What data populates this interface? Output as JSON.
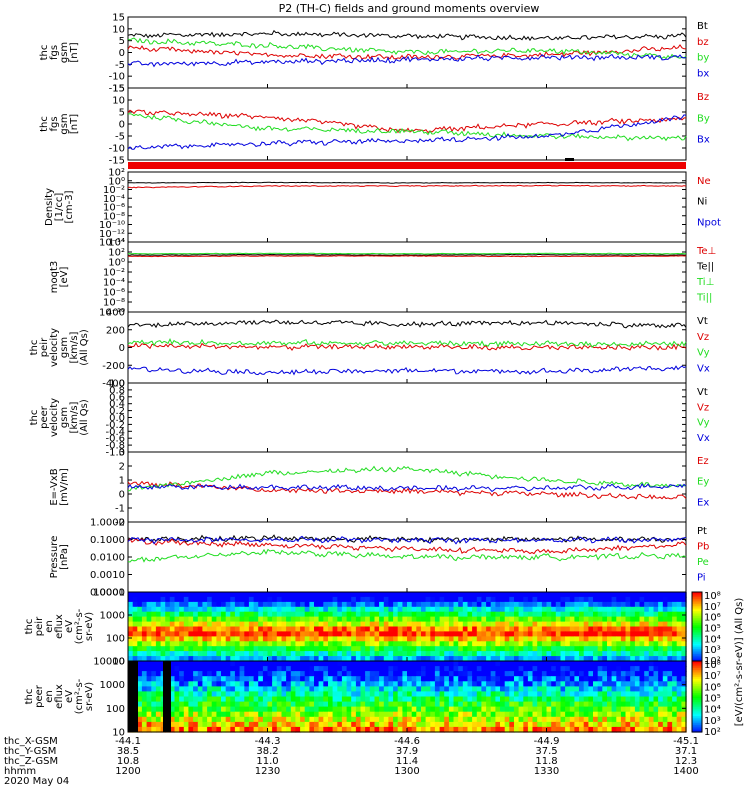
{
  "title": "P2 (TH-C) fields and ground moments overview",
  "colors": {
    "black": "#000000",
    "red": "#dd0000",
    "green": "#22dd22",
    "blue": "#0000dd"
  },
  "panels": [
    {
      "id": "fgs-gsm",
      "ylabel": [
        "thc",
        "fgs",
        "gsm",
        "[nT]"
      ],
      "ylim": [
        -15,
        15
      ],
      "yticks": [
        "15",
        "10",
        "5",
        "0",
        "-5",
        "-10",
        "-15"
      ],
      "legend": [
        {
          "text": "Bt",
          "color": "black"
        },
        {
          "text": "bz",
          "color": "red"
        },
        {
          "text": "by",
          "color": "green"
        },
        {
          "text": "bx",
          "color": "blue"
        }
      ]
    },
    {
      "id": "fgs-gsm-2",
      "ylabel": [
        "thc",
        "fgs",
        "gsm",
        "[nT]"
      ],
      "ylim": [
        -15,
        15
      ],
      "yticks": [
        "15",
        "10",
        "5",
        "0",
        "-5",
        "-10",
        "-15"
      ],
      "legend": [
        {
          "text": "Bz",
          "color": "red"
        },
        {
          "text": "By",
          "color": "green"
        },
        {
          "text": "Bx",
          "color": "blue"
        }
      ]
    },
    {
      "id": "density",
      "ylabel": [
        "Density",
        "[1/cc]",
        "[cm-3]"
      ],
      "yticks": [
        "10²",
        "10⁰",
        "10⁻²",
        "10⁻⁴",
        "10⁻⁶",
        "10⁻⁸",
        "10⁻¹⁰",
        "10⁻¹²",
        "10⁻¹⁴"
      ],
      "legend": [
        {
          "text": "Ne",
          "color": "red"
        },
        {
          "text": "Ni",
          "color": "black"
        },
        {
          "text": "Npot",
          "color": "blue"
        }
      ]
    },
    {
      "id": "temperature",
      "ylabel": [
        "moqt3",
        "[eV]"
      ],
      "yticks": [
        "10⁴",
        "10²",
        "10⁰",
        "10⁻²",
        "10⁻⁴",
        "10⁻⁶",
        "10⁻⁸",
        "10⁻¹⁰"
      ],
      "legend": [
        {
          "text": "Te⊥",
          "color": "red"
        },
        {
          "text": "Te||",
          "color": "black"
        },
        {
          "text": "Ti⊥",
          "color": "green"
        },
        {
          "text": "Ti||",
          "color": "green"
        }
      ]
    },
    {
      "id": "peir-velocity",
      "ylabel": [
        "thc",
        "peir",
        "velocity",
        "gsm",
        "[km/s]",
        "(All Qs)"
      ],
      "ylim": [
        -400,
        400
      ],
      "yticks": [
        "400",
        "200",
        "0",
        "-200",
        "-400"
      ],
      "legend": [
        {
          "text": "Vt",
          "color": "black"
        },
        {
          "text": "Vz",
          "color": "red"
        },
        {
          "text": "Vy",
          "color": "green"
        },
        {
          "text": "Vx",
          "color": "blue"
        }
      ]
    },
    {
      "id": "peer-velocity",
      "ylabel": [
        "thc",
        "peer",
        "velocity",
        "gsm",
        "[km/s]",
        "(All Qs)"
      ],
      "ylim": [
        -1.0,
        1.0
      ],
      "yticks": [
        "1.0",
        "0.8",
        "0.6",
        "0.4",
        "0.2",
        "0.0",
        "-0.2",
        "-0.4",
        "-0.6",
        "-0.8",
        "-1.0"
      ],
      "legend": [
        {
          "text": "Vt",
          "color": "black"
        },
        {
          "text": "Vz",
          "color": "red"
        },
        {
          "text": "Vy",
          "color": "green"
        },
        {
          "text": "Vx",
          "color": "blue"
        }
      ]
    },
    {
      "id": "efield",
      "ylabel": [
        "E=-VxB",
        "[mV/m]"
      ],
      "ylim": [
        -2,
        3
      ],
      "yticks": [
        "3",
        "2",
        "1",
        "0",
        "-1",
        "-2"
      ],
      "legend": [
        {
          "text": "Ez",
          "color": "red"
        },
        {
          "text": "Ey",
          "color": "green"
        },
        {
          "text": "Ex",
          "color": "blue"
        }
      ]
    },
    {
      "id": "pressure",
      "ylabel": [
        "Pressure",
        "[nPa]"
      ],
      "yticks": [
        "1.0000",
        "0.1000",
        "0.0100",
        "0.0010",
        "0.0001"
      ],
      "legend": [
        {
          "text": "Pt",
          "color": "black"
        },
        {
          "text": "Pb",
          "color": "red"
        },
        {
          "text": "Pe",
          "color": "green"
        },
        {
          "text": "Pi",
          "color": "blue"
        }
      ]
    },
    {
      "id": "peir-spectrogram",
      "ylabel": [
        "thc",
        "peir",
        "en",
        "eflux",
        "eV",
        "(cm²-s-",
        "sr-eV)"
      ],
      "yticks": [
        "10000",
        "1000",
        "100",
        "10"
      ]
    },
    {
      "id": "peer-spectrogram",
      "ylabel": [
        "thc",
        "peer",
        "en",
        "eflux",
        "eV",
        "(cm²-s-",
        "sr-eV)"
      ],
      "yticks": [
        "10000",
        "1000",
        "100",
        "10"
      ]
    }
  ],
  "colorbar": {
    "label": "[eV/(cm²-s-sr-eV)] (All Qs)",
    "top_ticks": [
      "10⁸",
      "10⁷",
      "10⁶",
      "10⁵",
      "10⁴",
      "10³",
      "10²"
    ],
    "bottom_ticks": [
      "10⁸",
      "10⁷",
      "10⁶",
      "10⁵",
      "10⁴",
      "10³",
      "10²"
    ]
  },
  "xaxis": {
    "rows": [
      {
        "label": "thc_X-GSM",
        "values": [
          "-44.1",
          "-44.3",
          "-44.6",
          "-44.9",
          "-45.1"
        ]
      },
      {
        "label": "thc_Y-GSM",
        "values": [
          "38.5",
          "38.2",
          "37.9",
          "37.5",
          "37.1"
        ]
      },
      {
        "label": "thc_Z-GSM",
        "values": [
          "10.8",
          "11.0",
          "11.4",
          "11.8",
          "12.3"
        ]
      },
      {
        "label": "hhmm",
        "values": [
          "1200",
          "1230",
          "1300",
          "1330",
          "1400"
        ]
      }
    ],
    "date": "2020 May 04"
  },
  "chart_data": {
    "type": "line",
    "title": "P2 (TH-C) fields and ground moments overview",
    "x": [
      "1200",
      "1230",
      "1300",
      "1330",
      "1400"
    ],
    "panels": [
      {
        "id": "fgs-gsm",
        "ylim": [
          -15,
          15
        ],
        "series": [
          {
            "name": "Bt",
            "values": [
              7,
              8,
              7,
              6,
              7
            ]
          },
          {
            "name": "bz",
            "values": [
              2,
              -1,
              -2,
              -1,
              2
            ]
          },
          {
            "name": "by",
            "values": [
              5,
              3,
              0,
              1,
              -2
            ]
          },
          {
            "name": "bx",
            "values": [
              -5,
              -4,
              -3,
              -2,
              -2
            ]
          }
        ]
      },
      {
        "id": "fgs-gsm-2",
        "ylim": [
          -15,
          15
        ],
        "series": [
          {
            "name": "Bz",
            "values": [
              5,
              3,
              -3,
              0,
              2
            ]
          },
          {
            "name": "By",
            "values": [
              4,
              -2,
              -3,
              -5,
              -6
            ]
          },
          {
            "name": "Bx",
            "values": [
              -10,
              -8,
              -7,
              -5,
              3
            ]
          }
        ]
      },
      {
        "id": "peir-velocity",
        "ylim": [
          -400,
          400
        ],
        "series": [
          {
            "name": "Vt",
            "values": [
              250,
              290,
              260,
              280,
              240
            ]
          },
          {
            "name": "Vz",
            "values": [
              20,
              5,
              10,
              -5,
              5
            ]
          },
          {
            "name": "Vy",
            "values": [
              60,
              50,
              50,
              40,
              40
            ]
          },
          {
            "name": "Vx",
            "values": [
              -240,
              -280,
              -260,
              -270,
              -230
            ]
          }
        ]
      },
      {
        "id": "efield",
        "ylim": [
          -2,
          3
        ],
        "series": [
          {
            "name": "Ez",
            "values": [
              0.8,
              0.3,
              0.2,
              0.0,
              -0.3
            ]
          },
          {
            "name": "Ey",
            "values": [
              0.3,
              1.5,
              1.8,
              1.0,
              0.5
            ]
          },
          {
            "name": "Ex",
            "values": [
              0.5,
              0.5,
              0.4,
              0.4,
              0.6
            ]
          }
        ]
      },
      {
        "id": "pressure",
        "ylim": [
          0.0001,
          1.0
        ],
        "scale": "log",
        "series": [
          {
            "name": "Pt",
            "values": [
              0.1,
              0.12,
              0.1,
              0.1,
              0.11
            ]
          },
          {
            "name": "Pb",
            "values": [
              0.08,
              0.05,
              0.03,
              0.02,
              0.05
            ]
          },
          {
            "name": "Pe",
            "values": [
              0.006,
              0.02,
              0.01,
              0.01,
              0.012
            ]
          },
          {
            "name": "Pi",
            "values": [
              0.09,
              0.1,
              0.09,
              0.09,
              0.1
            ]
          }
        ]
      }
    ]
  }
}
